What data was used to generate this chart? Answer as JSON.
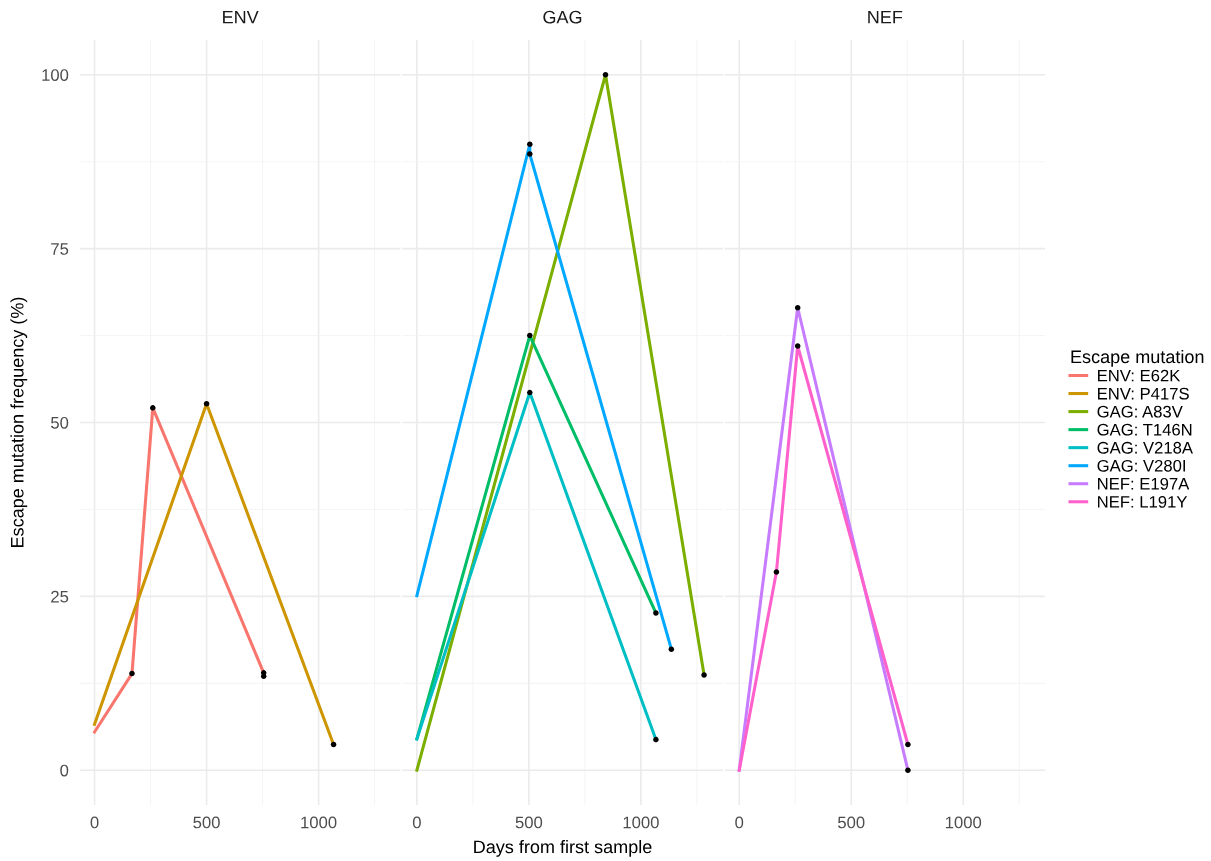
{
  "chart_data": [
    {
      "type": "line",
      "title": "ENV",
      "ylabel": "Escape mutation frequency (%)",
      "legend": "right",
      "xlim": [
        -65,
        1365
      ],
      "xticks": [
        0,
        500,
        1000
      ],
      "ylim": [
        -5,
        105
      ],
      "yticks": [
        0,
        25,
        50,
        75,
        100
      ],
      "grid": true,
      "series": [
        {
          "name": "ENV: E62K",
          "color": "#f8766d",
          "x": [
            0,
            167,
            260,
            755,
            755
          ],
          "values": [
            5.5,
            13.9,
            52.1,
            14.0,
            13.5
          ]
        },
        {
          "name": "ENV: P417S",
          "color": "#cd9600",
          "x": [
            0,
            500,
            1067
          ],
          "values": [
            6.6,
            52.7,
            3.7
          ]
        },
        {
          "type": "scatter",
          "color": "#000000",
          "x": [
            167,
            260,
            755,
            755,
            500,
            1067
          ],
          "values": [
            13.9,
            52.1,
            14.0,
            13.5,
            52.7,
            3.7
          ]
        }
      ]
    },
    {
      "type": "line",
      "title": "GAG",
      "xlabel": "Days from first sample",
      "xlim": [
        -65,
        1365
      ],
      "xticks": [
        0,
        500,
        1000
      ],
      "ylim": [
        -5,
        105
      ],
      "yticks": [
        0,
        25,
        50,
        75,
        100
      ],
      "grid": true,
      "tick_labels": "x",
      "legend": "right",
      "series": [
        {
          "name": "GAG: A83V",
          "color": "#7cae00",
          "x": [
            0,
            842,
            1282
          ],
          "values": [
            0,
            100,
            13.7
          ]
        },
        {
          "name": "GAG: T146N",
          "color": "#00be67",
          "x": [
            0,
            504,
            1067
          ],
          "values": [
            4.5,
            62.5,
            22.6
          ]
        },
        {
          "name": "GAG: V218A",
          "color": "#00bfc4",
          "x": [
            0,
            504,
            1067
          ],
          "values": [
            4.5,
            54.3,
            4.4
          ]
        },
        {
          "name": "GAG: V280I",
          "color": "#00a9ff",
          "x": [
            0,
            504,
            504,
            1136
          ],
          "values": [
            25.1,
            90.0,
            88.6,
            17.4
          ]
        },
        {
          "type": "scatter",
          "color": "#000000",
          "x": [
            842,
            1282,
            504,
            1067,
            504,
            1067,
            504,
            504,
            1136
          ],
          "values": [
            100,
            13.7,
            62.5,
            22.6,
            54.3,
            4.4,
            90.0,
            88.6,
            17.4
          ]
        }
      ]
    },
    {
      "type": "line",
      "title": "NEF",
      "xlim": [
        -65,
        1365
      ],
      "xticks": [
        0,
        500,
        1000
      ],
      "ylim": [
        -5,
        105
      ],
      "yticks": [
        0,
        25,
        50,
        75,
        100
      ],
      "grid": true,
      "tick_labels": "x",
      "legend": "right",
      "legend_title": "Escape mutation",
      "series": [
        {
          "name": "NEF: E197A",
          "color": "#c77cff",
          "x": [
            0,
            261,
            753
          ],
          "values": [
            0,
            66.5,
            0
          ]
        },
        {
          "name": "NEF: L191Y",
          "color": "#ff61cc",
          "x": [
            0,
            166,
            261,
            753
          ],
          "values": [
            0,
            28.5,
            61.0,
            3.7
          ]
        },
        {
          "type": "scatter",
          "color": "#000000",
          "x": [
            261,
            753,
            166,
            261,
            753
          ],
          "values": [
            66.5,
            0,
            28.5,
            61.0,
            3.7
          ]
        }
      ]
    }
  ]
}
